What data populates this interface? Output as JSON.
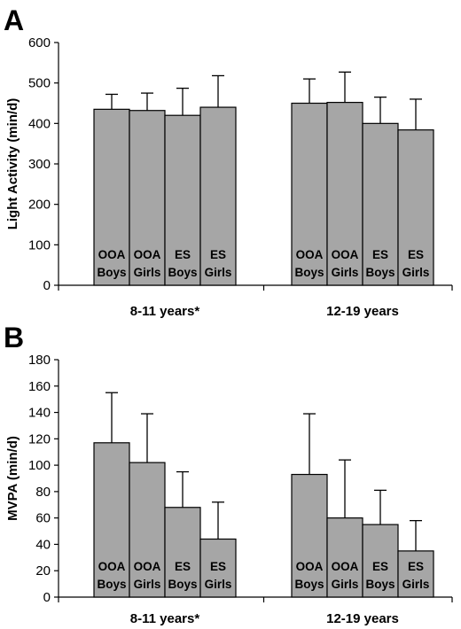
{
  "colors": {
    "bar_fill": "#a6a6a6",
    "bar_stroke": "#000000",
    "axis": "#000000"
  },
  "chart_data": [
    {
      "type": "bar",
      "panel_label": "A",
      "ylabel": "Light Activity (min/d)",
      "ylim": [
        0,
        600
      ],
      "yticks": [
        0,
        100,
        200,
        300,
        400,
        500,
        600
      ],
      "groups": [
        "8-11 years*",
        "12-19 years"
      ],
      "categories": [
        [
          "OOA",
          "Boys"
        ],
        [
          "OOA",
          "Girls"
        ],
        [
          "ES",
          "Boys"
        ],
        [
          "ES",
          "Girls"
        ]
      ],
      "values": [
        [
          435,
          432,
          420,
          440
        ],
        [
          450,
          452,
          400,
          384
        ]
      ],
      "error_upper": [
        [
          472,
          475,
          487,
          518
        ],
        [
          510,
          527,
          465,
          460
        ]
      ],
      "grid": false,
      "legend": "none"
    },
    {
      "type": "bar",
      "panel_label": "B",
      "ylabel": "MVPA (min/d)",
      "ylim": [
        0,
        180
      ],
      "yticks": [
        0,
        20,
        40,
        60,
        80,
        100,
        120,
        140,
        160,
        180
      ],
      "groups": [
        "8-11 years*",
        "12-19 years"
      ],
      "categories": [
        [
          "OOA",
          "Boys"
        ],
        [
          "OOA",
          "Girls"
        ],
        [
          "ES",
          "Boys"
        ],
        [
          "ES",
          "Girls"
        ]
      ],
      "values": [
        [
          117,
          102,
          68,
          44
        ],
        [
          93,
          60,
          55,
          35
        ]
      ],
      "error_upper": [
        [
          155,
          139,
          95,
          72
        ],
        [
          139,
          104,
          81,
          58
        ]
      ],
      "grid": false,
      "legend": "none"
    }
  ]
}
